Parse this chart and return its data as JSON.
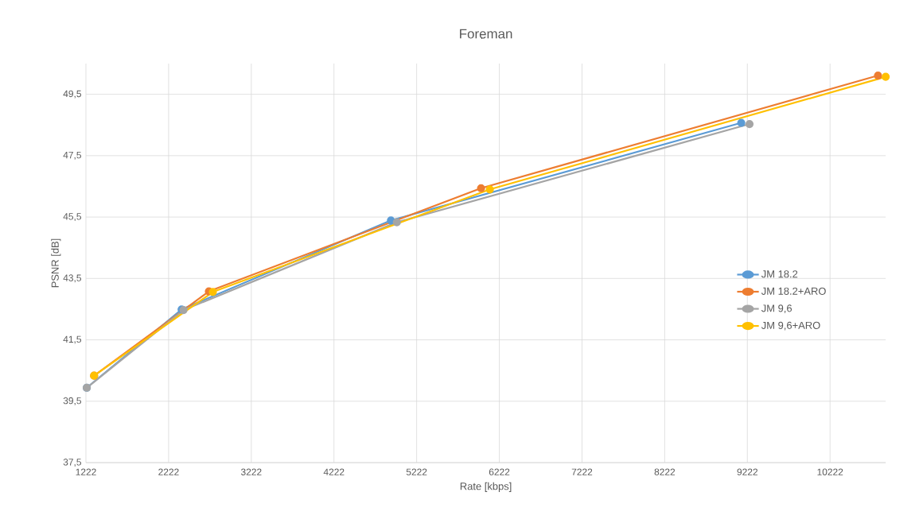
{
  "chart_data": {
    "type": "line",
    "title": "Foreman",
    "xlabel": "Rate [kbps]",
    "ylabel": "PSNR [dB]",
    "xlim": [
      1222,
      10895
    ],
    "xticks": [
      1222,
      2222,
      3222,
      4222,
      5222,
      6222,
      7222,
      8222,
      9222,
      10222
    ],
    "ylim": [
      37.5,
      50.5
    ],
    "yticks": [
      {
        "value": 37.5,
        "label": "37,5"
      },
      {
        "value": 39.5,
        "label": "39,5"
      },
      {
        "value": 41.5,
        "label": "41,5"
      },
      {
        "value": 43.5,
        "label": "43,5"
      },
      {
        "value": 45.5,
        "label": "45,5"
      },
      {
        "value": 47.5,
        "label": "47,5"
      },
      {
        "value": 49.5,
        "label": "49,5"
      }
    ],
    "grid": true,
    "legend": "right",
    "marker": "circle",
    "line_style": "solid",
    "series": [
      {
        "name": "JM 18.2",
        "color": "#5b9bd5",
        "x": [
          1232,
          2379,
          4911,
          9148
        ],
        "values": [
          39.94,
          42.49,
          45.39,
          48.57
        ]
      },
      {
        "name": "JM 18.2+ARO",
        "color": "#ed7d31",
        "x": [
          1321,
          2709,
          6001,
          10802
        ],
        "values": [
          40.33,
          43.08,
          46.44,
          50.11
        ]
      },
      {
        "name": "JM 9,6",
        "color": "#a5a5a5",
        "x": [
          1232,
          2402,
          4982,
          9248
        ],
        "values": [
          39.94,
          42.47,
          45.33,
          48.53
        ]
      },
      {
        "name": "JM 9,6+ARO",
        "color": "#ffc000",
        "x": [
          1321,
          2757,
          6107,
          10895
        ],
        "values": [
          40.33,
          43.06,
          46.4,
          50.07
        ]
      }
    ]
  }
}
